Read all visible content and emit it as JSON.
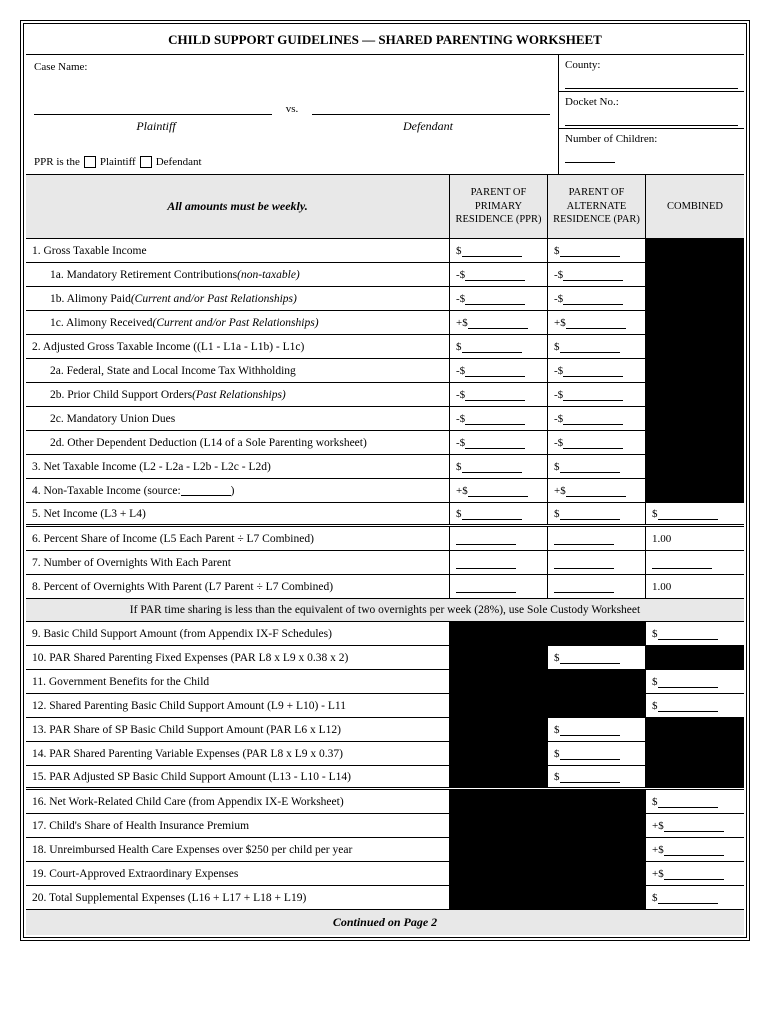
{
  "title": "CHILD SUPPORT GUIDELINES — SHARED PARENTING WORKSHEET",
  "header": {
    "case_name_label": "Case Name:",
    "vs": "vs.",
    "plaintiff": "Plaintiff",
    "defendant": "Defendant",
    "ppr_prefix": "PPR is the",
    "ppr_plaintiff": "Plaintiff",
    "ppr_defendant": "Defendant",
    "county_label": "County:",
    "docket_label": "Docket No.:",
    "children_label": "Number of Children:"
  },
  "columns": {
    "instruction": "All amounts must be weekly.",
    "ppr": "PARENT OF PRIMARY RESIDENCE (PPR)",
    "par": "PARENT OF ALTERNATE RESIDENCE (PAR)",
    "combined": "COMBINED"
  },
  "rows": [
    {
      "label": "1. Gross Taxable Income",
      "indent": false,
      "ppr": "$",
      "par": "$",
      "comb": "BLACK"
    },
    {
      "label": "1a. Mandatory Retirement Contributions",
      "suffix": "(non-taxable)",
      "indent": true,
      "ppr": "-$",
      "par": "-$",
      "comb": "BLACK"
    },
    {
      "label": "1b. Alimony Paid",
      "suffix": "(Current and/or Past Relationships)",
      "indent": true,
      "ppr": "-$",
      "par": "-$",
      "comb": "BLACK"
    },
    {
      "label": "1c. Alimony Received",
      "suffix": "(Current and/or Past Relationships)",
      "indent": true,
      "ppr": "+$",
      "par": "+$",
      "comb": "BLACK"
    },
    {
      "label": "2. Adjusted Gross Taxable Income ((L1 - L1a - L1b) - L1c)",
      "indent": false,
      "ppr": "$",
      "par": "$",
      "comb": "BLACK"
    },
    {
      "label": "2a. Federal, State and Local Income Tax Withholding",
      "indent": true,
      "ppr": "-$",
      "par": "-$",
      "comb": "BLACK"
    },
    {
      "label": "2b. Prior Child Support Orders",
      "suffix": "(Past Relationships)",
      "indent": true,
      "ppr": "-$",
      "par": "-$",
      "comb": "BLACK"
    },
    {
      "label": "2c. Mandatory Union Dues",
      "indent": true,
      "ppr": "-$",
      "par": "-$",
      "comb": "BLACK"
    },
    {
      "label": "2d. Other Dependent Deduction (L14 of a Sole Parenting worksheet)",
      "indent": true,
      "ppr": "-$",
      "par": "-$",
      "comb": "BLACK"
    },
    {
      "label": "3. Net Taxable Income (L2 - L2a - L2b - L2c - L2d)",
      "indent": false,
      "ppr": "$",
      "par": "$",
      "comb": "BLACK"
    },
    {
      "label": "4. Non-Taxable Income (source:",
      "src": true,
      "close": ")",
      "indent": false,
      "ppr": "+$",
      "par": "+$",
      "comb": "BLACK"
    },
    {
      "label": "5. Net Income (L3 + L4)",
      "indent": false,
      "ppr": "$",
      "par": "$",
      "comb": "$",
      "divider": true
    },
    {
      "label": "6. Percent Share of Income (L5 Each Parent ÷ L7 Combined)",
      "indent": false,
      "ppr": "LINE",
      "par": "LINE",
      "comb": "1.00"
    },
    {
      "label": "7. Number of Overnights With Each Parent",
      "indent": false,
      "ppr": "LINE",
      "par": "LINE",
      "comb": "LINE"
    },
    {
      "label": "8. Percent of Overnights With Parent (L7 Parent ÷ L7 Combined)",
      "indent": false,
      "ppr": "LINE",
      "par": "LINE",
      "comb": "1.00"
    }
  ],
  "note": "If PAR time sharing is less than the equivalent of two overnights per week (28%), use Sole Custody Worksheet",
  "rows2": [
    {
      "label": "9. Basic Child Support Amount (from Appendix IX-F Schedules)",
      "ppr": "BLACK",
      "par": "BLACK",
      "comb": "$"
    },
    {
      "label": "10. PAR Shared Parenting Fixed Expenses (PAR L8 x L9 x 0.38 x 2)",
      "ppr": "BLACK",
      "par": "$",
      "comb": "BLACK"
    },
    {
      "label": "11. Government Benefits for the Child",
      "ppr": "BLACK",
      "par": "BLACK",
      "comb": "$"
    },
    {
      "label": "12. Shared Parenting Basic Child Support Amount (L9 + L10) - L11",
      "ppr": "BLACK",
      "par": "BLACK",
      "comb": "$"
    },
    {
      "label": "13. PAR Share of SP Basic Child Support Amount (PAR L6 x L12)",
      "ppr": "BLACK",
      "par": "$",
      "comb": "BLACK"
    },
    {
      "label": "14. PAR Shared Parenting Variable Expenses (PAR L8 x L9 x 0.37)",
      "ppr": "BLACK",
      "par": "$",
      "comb": "BLACK"
    },
    {
      "label": "15. PAR Adjusted SP Basic Child Support Amount (L13 - L10 - L14)",
      "ppr": "BLACK",
      "par": "$",
      "comb": "BLACK",
      "divider": true
    },
    {
      "label": "16. Net Work-Related Child Care (from Appendix IX-E Worksheet)",
      "ppr": "BLACK",
      "par": "BLACK",
      "comb": "$"
    },
    {
      "label": "17. Child's Share of Health Insurance Premium",
      "ppr": "BLACK",
      "par": "BLACK",
      "comb": "+$"
    },
    {
      "label": "18. Unreimbursed Health Care Expenses over $250 per child per year",
      "ppr": "BLACK",
      "par": "BLACK",
      "comb": "+$"
    },
    {
      "label": "19. Court-Approved Extraordinary Expenses",
      "ppr": "BLACK",
      "par": "BLACK",
      "comb": "+$"
    },
    {
      "label": "20. Total Supplemental Expenses (L16 + L17 + L18 + L19)",
      "ppr": "BLACK",
      "par": "BLACK",
      "comb": "$"
    }
  ],
  "footer": "Continued on Page 2"
}
